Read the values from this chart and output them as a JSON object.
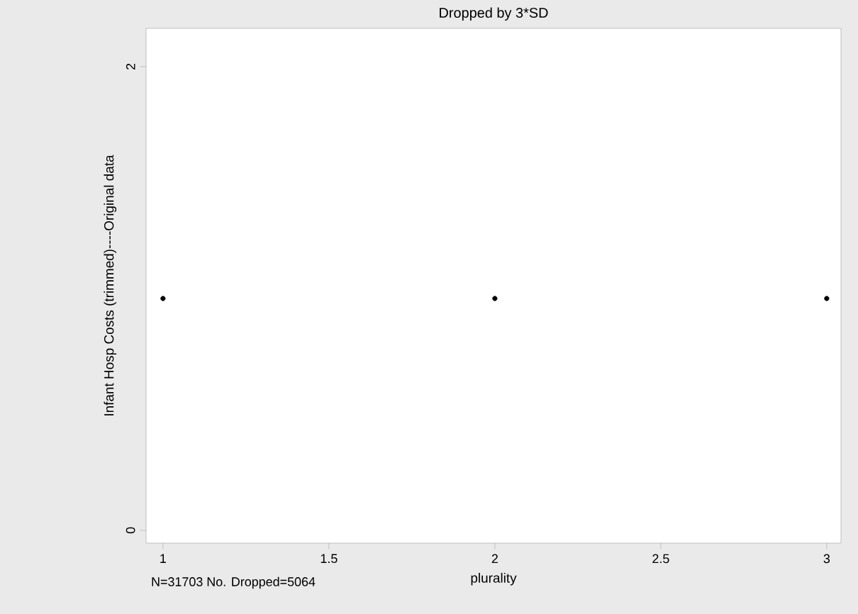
{
  "chart_data": {
    "type": "scatter",
    "title": "Dropped by 3*SD",
    "xlabel": "plurality",
    "ylabel": "Infant Hosp Costs (trimmed)----Original data",
    "x": [
      1,
      2,
      3
    ],
    "values": [
      1,
      1,
      1
    ],
    "color": "#000000",
    "marker": "circle",
    "xlim": [
      0.949,
      3.043
    ],
    "ylim": [
      -0.055,
      2.165
    ],
    "xticks": [
      1,
      1.5,
      2,
      2.5,
      3
    ],
    "yticks": [
      0,
      2
    ],
    "grid": false,
    "annotations": [
      "N=31703    No. Dropped=5064"
    ]
  }
}
